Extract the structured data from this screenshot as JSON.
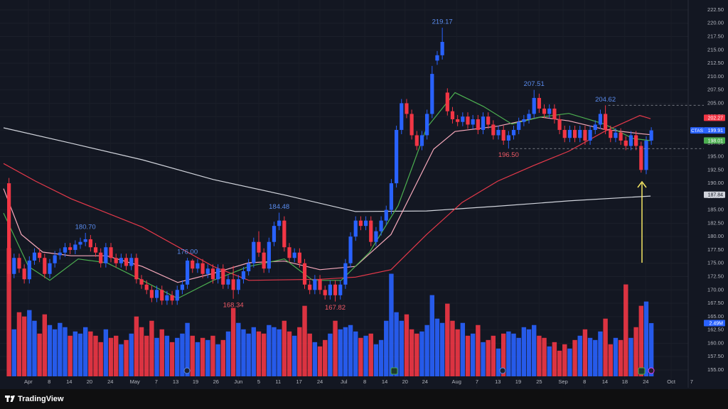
{
  "chart_data": {
    "type": "candlestick",
    "symbol": "CTAS",
    "ylim": [
      153.13,
      224.36
    ],
    "yticks": [
      {
        "value": 155,
        "label": "155.00"
      },
      {
        "value": 157.5,
        "label": "157.50"
      },
      {
        "value": 160,
        "label": "160.00"
      },
      {
        "value": 162.5,
        "label": "162.50"
      },
      {
        "value": 165,
        "label": "165.00"
      },
      {
        "value": 167.5,
        "label": "167.50"
      },
      {
        "value": 170,
        "label": "170.00"
      },
      {
        "value": 172.5,
        "label": "172.50"
      },
      {
        "value": 175,
        "label": "175.00"
      },
      {
        "value": 177.5,
        "label": "177.50"
      },
      {
        "value": 180,
        "label": "180.00"
      },
      {
        "value": 182.5,
        "label": "182.50"
      },
      {
        "value": 185,
        "label": "185.00"
      },
      {
        "value": 187.5,
        "label": "187.50"
      },
      {
        "value": 190,
        "label": "190.00"
      },
      {
        "value": 192.5,
        "label": "192.50"
      },
      {
        "value": 195,
        "label": "195.00"
      },
      {
        "value": 197.5,
        "label": "197.50"
      },
      {
        "value": 200,
        "label": "200.00"
      },
      {
        "value": 202.5,
        "label": "202.50"
      },
      {
        "value": 205,
        "label": "205.00"
      },
      {
        "value": 207.5,
        "label": "207.50"
      },
      {
        "value": 210,
        "label": "210.00"
      },
      {
        "value": 212.5,
        "label": "212.50"
      },
      {
        "value": 215,
        "label": "215.00"
      },
      {
        "value": 217.5,
        "label": "217.50"
      },
      {
        "value": 220,
        "label": "220.00"
      },
      {
        "value": 222.5,
        "label": "222.50"
      }
    ],
    "xlim": [
      -1.76,
      136.3
    ],
    "xticks": [
      {
        "value": 3.8,
        "label": "Apr"
      },
      {
        "value": 7.9,
        "label": "8"
      },
      {
        "value": 11.8,
        "label": "14"
      },
      {
        "value": 15.8,
        "label": "20"
      },
      {
        "value": 19.9,
        "label": "24"
      },
      {
        "value": 24.7,
        "label": "May"
      },
      {
        "value": 28.9,
        "label": "7"
      },
      {
        "value": 32.7,
        "label": "13"
      },
      {
        "value": 36.6,
        "label": "19"
      },
      {
        "value": 40.6,
        "label": "26"
      },
      {
        "value": 45,
        "label": "Jun"
      },
      {
        "value": 49,
        "label": "5"
      },
      {
        "value": 52.8,
        "label": "11"
      },
      {
        "value": 56.9,
        "label": "17"
      },
      {
        "value": 61,
        "label": "24"
      },
      {
        "value": 65.7,
        "label": "Jul"
      },
      {
        "value": 69.8,
        "label": "8"
      },
      {
        "value": 73.7,
        "label": "14"
      },
      {
        "value": 77.7,
        "label": "20"
      },
      {
        "value": 81.6,
        "label": "24"
      },
      {
        "value": 87.8,
        "label": "Aug"
      },
      {
        "value": 91.8,
        "label": "7"
      },
      {
        "value": 95.9,
        "label": "13"
      },
      {
        "value": 99.9,
        "label": "19"
      },
      {
        "value": 104,
        "label": "25"
      },
      {
        "value": 108.7,
        "label": "Sep"
      },
      {
        "value": 112.9,
        "label": "8"
      },
      {
        "value": 116.9,
        "label": "14"
      },
      {
        "value": 120.8,
        "label": "18"
      },
      {
        "value": 124.9,
        "label": "24"
      },
      {
        "value": 129.9,
        "label": "Oct"
      },
      {
        "value": 133.9,
        "label": "7"
      }
    ],
    "colors": {
      "up": "#2962ff",
      "down": "#f23645"
    },
    "ohlc": [
      [
        190,
        191,
        171.5,
        173
      ],
      [
        173,
        176.8,
        172.2,
        176
      ],
      [
        176,
        176.8,
        173.2,
        174
      ],
      [
        174,
        174.8,
        171.2,
        172
      ],
      [
        172,
        176.3,
        171.2,
        175.5
      ],
      [
        175.5,
        177.8,
        174.7,
        177
      ],
      [
        177,
        177.8,
        175.2,
        176
      ],
      [
        176,
        176.8,
        172.2,
        173
      ],
      [
        173,
        175.8,
        172.2,
        175
      ],
      [
        175,
        177.3,
        174.2,
        176.5
      ],
      [
        176.5,
        177.8,
        175.7,
        177
      ],
      [
        177,
        178.8,
        176.2,
        178
      ],
      [
        178,
        178.8,
        176.7,
        177.5
      ],
      [
        177.5,
        179.3,
        176.7,
        178.5
      ],
      [
        178.5,
        179.8,
        177.7,
        179
      ],
      [
        179,
        180.7,
        178.2,
        179.5
      ],
      [
        179.5,
        180.3,
        177.2,
        178
      ],
      [
        178,
        178.8,
        176.2,
        177
      ],
      [
        177,
        177.8,
        174.2,
        175
      ],
      [
        175,
        178.8,
        174.2,
        178
      ],
      [
        178,
        178.8,
        175.2,
        176
      ],
      [
        176,
        176.8,
        174.2,
        175
      ],
      [
        175,
        176.8,
        174.2,
        176
      ],
      [
        176,
        176.8,
        173.7,
        174.5
      ],
      [
        174.5,
        176.8,
        173.7,
        176
      ],
      [
        176,
        176.8,
        171.2,
        172
      ],
      [
        172,
        172.8,
        170.2,
        171
      ],
      [
        171,
        171.8,
        169.2,
        170
      ],
      [
        170,
        170.8,
        167.7,
        168.5
      ],
      [
        168.5,
        170.8,
        167.7,
        170
      ],
      [
        170,
        170.8,
        167.2,
        168
      ],
      [
        168,
        169.8,
        167.2,
        169
      ],
      [
        169,
        169.8,
        167.2,
        168
      ],
      [
        168,
        170.8,
        167.2,
        170
      ],
      [
        170,
        171.8,
        169.2,
        171
      ],
      [
        171,
        176,
        170.2,
        175.5
      ],
      [
        175.5,
        175.8,
        173.2,
        174
      ],
      [
        174,
        175.8,
        173.2,
        175
      ],
      [
        175,
        175.8,
        172.2,
        173
      ],
      [
        173,
        174.8,
        172.2,
        174
      ],
      [
        174,
        174.8,
        171.2,
        172
      ],
      [
        172,
        174.8,
        171.2,
        174
      ],
      [
        174,
        174.8,
        170.2,
        171
      ],
      [
        171,
        172.8,
        170.2,
        172
      ],
      [
        172,
        174.5,
        168.34,
        170
      ],
      [
        170,
        172.8,
        169.2,
        172
      ],
      [
        172,
        174.3,
        171.2,
        173.5
      ],
      [
        173.5,
        175.8,
        172.7,
        175
      ],
      [
        175,
        179.8,
        174.2,
        179
      ],
      [
        179,
        181,
        176.2,
        177
      ],
      [
        177,
        177.8,
        173.2,
        174
      ],
      [
        174,
        179.8,
        173.2,
        179
      ],
      [
        179,
        182.8,
        178.2,
        182
      ],
      [
        182,
        184.48,
        181.2,
        183
      ],
      [
        183,
        183.8,
        177.2,
        178
      ],
      [
        178,
        178.8,
        175.2,
        176
      ],
      [
        176,
        177.8,
        175.2,
        177
      ],
      [
        177,
        177.8,
        174.2,
        175
      ],
      [
        175,
        175.8,
        170.2,
        171
      ],
      [
        171,
        171.8,
        169.2,
        170
      ],
      [
        170,
        172.8,
        169.2,
        172
      ],
      [
        172,
        172.8,
        169.2,
        170
      ],
      [
        170,
        170.8,
        168.2,
        169
      ],
      [
        169,
        171.8,
        168.2,
        171
      ],
      [
        171,
        171.8,
        167.82,
        169
      ],
      [
        169,
        171.8,
        168.2,
        171
      ],
      [
        171,
        175.8,
        170.2,
        175
      ],
      [
        175,
        180.8,
        174.2,
        180
      ],
      [
        180,
        183.8,
        179.2,
        183
      ],
      [
        183,
        183.8,
        181.2,
        182
      ],
      [
        182,
        183.8,
        181.2,
        183
      ],
      [
        183,
        183.8,
        178.2,
        179
      ],
      [
        179,
        181.8,
        178.2,
        181
      ],
      [
        181,
        183.8,
        180.2,
        183
      ],
      [
        183,
        185.8,
        182.2,
        185
      ],
      [
        185,
        190.8,
        184.2,
        190
      ],
      [
        190,
        200.8,
        189.2,
        200
      ],
      [
        200,
        205.8,
        199.2,
        205
      ],
      [
        205,
        205.8,
        202.2,
        203
      ],
      [
        203,
        203.8,
        198.2,
        199
      ],
      [
        199,
        199.8,
        196.2,
        197
      ],
      [
        197,
        199.8,
        196.2,
        199
      ],
      [
        199,
        203.8,
        198.2,
        203
      ],
      [
        203,
        212,
        202.2,
        210.5
      ],
      [
        213,
        214.8,
        212.2,
        214
      ],
      [
        214,
        219.17,
        213.2,
        216.5
      ],
      [
        207,
        207.8,
        202.7,
        203.5
      ],
      [
        203.5,
        204.3,
        201.2,
        202
      ],
      [
        202,
        202.8,
        200.7,
        201.5
      ],
      [
        201.5,
        203.3,
        200.7,
        202.5
      ],
      [
        202.5,
        203.3,
        200.2,
        201
      ],
      [
        201,
        202.8,
        200.2,
        202
      ],
      [
        202,
        202.8,
        199.2,
        200
      ],
      [
        200,
        203.3,
        199.2,
        202.5
      ],
      [
        202.5,
        203.3,
        200.2,
        201
      ],
      [
        201,
        201.8,
        198.2,
        199
      ],
      [
        199,
        200.8,
        198.2,
        200
      ],
      [
        200,
        200.8,
        197.2,
        198
      ],
      [
        198,
        199.8,
        196.5,
        199
      ],
      [
        199,
        200.8,
        198.2,
        200
      ],
      [
        200,
        202.3,
        199.2,
        201.5
      ],
      [
        201.5,
        202.8,
        200.7,
        202
      ],
      [
        202,
        203.8,
        201.2,
        203
      ],
      [
        203,
        207.51,
        202.2,
        206
      ],
      [
        206,
        206.8,
        203.2,
        204
      ],
      [
        204,
        204.8,
        202.2,
        203
      ],
      [
        203,
        204.8,
        202.2,
        204
      ],
      [
        204,
        204.8,
        201.2,
        202
      ],
      [
        202,
        202.8,
        199.2,
        200
      ],
      [
        200,
        200.8,
        197.7,
        198.5
      ],
      [
        198.5,
        200.8,
        197.7,
        200
      ],
      [
        200,
        200.8,
        197.7,
        198.5
      ],
      [
        198.5,
        200.8,
        197.7,
        200
      ],
      [
        200,
        200.8,
        197.2,
        198
      ],
      [
        198,
        200.8,
        197.2,
        200
      ],
      [
        200,
        201.8,
        199.2,
        201
      ],
      [
        201,
        203.8,
        200.2,
        203
      ],
      [
        203,
        204.62,
        199.2,
        200
      ],
      [
        200,
        200.8,
        197.7,
        198.5
      ],
      [
        198.5,
        200.3,
        197.7,
        199.5
      ],
      [
        199.5,
        200.3,
        197.2,
        198
      ],
      [
        198,
        198.8,
        196.2,
        197
      ],
      [
        197,
        199.8,
        196.2,
        199
      ],
      [
        199,
        199.8,
        196.2,
        197
      ],
      [
        197,
        197.8,
        192,
        192.5
      ],
      [
        192.5,
        198.8,
        191.7,
        198
      ],
      [
        198,
        200.5,
        197.2,
        199.91
      ]
    ],
    "volume": [
      6.0,
      2.2,
      3.0,
      2.8,
      3.1,
      2.6,
      2.0,
      2.9,
      2.4,
      2.2,
      2.5,
      2.3,
      1.9,
      2.1,
      2.0,
      2.3,
      2.1,
      1.9,
      1.6,
      2.2,
      1.8,
      1.9,
      1.5,
      1.7,
      2.0,
      2.8,
      2.3,
      1.9,
      2.6,
      1.8,
      2.2,
      1.9,
      1.6,
      1.8,
      2.0,
      2.5,
      1.9,
      1.6,
      1.8,
      1.7,
      1.9,
      1.5,
      1.7,
      2.1,
      3.2,
      2.5,
      2.2,
      2.0,
      2.3,
      2.1,
      2.0,
      2.4,
      2.3,
      2.2,
      2.6,
      2.1,
      1.9,
      2.3,
      3.3,
      2.0,
      1.6,
      1.4,
      1.7,
      2.0,
      2.6,
      2.2,
      2.3,
      2.4,
      2.1,
      1.8,
      1.9,
      2.0,
      1.5,
      1.7,
      2.6,
      4.8,
      3.0,
      2.6,
      2.9,
      2.2,
      2.0,
      2.1,
      2.4,
      3.8,
      2.7,
      2.5,
      3.4,
      2.6,
      2.2,
      2.5,
      1.9,
      2.0,
      2.4,
      1.6,
      1.7,
      1.9,
      1.3,
      2.0,
      2.1,
      2.0,
      1.8,
      2.3,
      2.2,
      2.4,
      1.9,
      1.8,
      1.4,
      1.6,
      1.2,
      1.5,
      1.3,
      1.7,
      1.9,
      2.2,
      1.8,
      1.7,
      2.1,
      2.7,
      1.5,
      1.8,
      1.7,
      4.3,
      1.8,
      2.3,
      3.3,
      3.5,
      2.49
    ],
    "moving_averages": [
      {
        "color": "#d1d4dc",
        "x": [
          -1.06,
          12.19,
          26.13,
          40.08,
          54.02,
          67.97,
          81.92,
          95.86,
          109.81,
          125.85
        ],
        "values": [
          200.4,
          197.5,
          194.4,
          190.7,
          187.8,
          184.7,
          184.8,
          185.7,
          186.7,
          187.6
        ]
      },
      {
        "color": "#e5394a",
        "x": [
          -1.06,
          5.21,
          12.19,
          26.13,
          40.08,
          47.05,
          61.0,
          67.97,
          74.94,
          81.92,
          88.89,
          95.86,
          102.84,
          109.81,
          116.78,
          123.75,
          125.85
        ],
        "values": [
          193.7,
          190.4,
          187.1,
          181.8,
          174.4,
          171.8,
          172,
          172.4,
          173.8,
          180.4,
          186.4,
          190.4,
          193.3,
          196,
          199.7,
          202.7,
          202.1
        ]
      },
      {
        "color": "#f7a9bb",
        "x": [
          -1.06,
          2.42,
          6.61,
          12.19,
          19.16,
          26.13,
          33.1,
          40.08,
          47.05,
          54.02,
          61.0,
          67.97,
          74.94,
          79.13,
          83.31,
          87.49,
          95.86,
          104.23,
          109.81,
          116.78,
          123.75,
          125.85
        ],
        "values": [
          189,
          180.4,
          177.1,
          176.4,
          176.4,
          174.4,
          171.4,
          173.1,
          175.1,
          175.4,
          173.8,
          174.4,
          180.4,
          188.4,
          196.4,
          199.7,
          200.7,
          202.4,
          201.7,
          200.1,
          199.3,
          199.1
        ]
      },
      {
        "color": "#4caf50",
        "x": [
          -1.06,
          3.82,
          8.0,
          13.58,
          19.16,
          26.13,
          33.1,
          40.08,
          47.05,
          54.02,
          59.6,
          65.18,
          70.76,
          76.34,
          81.92,
          87.49,
          93.07,
          98.65,
          104.23,
          109.81,
          116.78,
          122.36,
          125.85
        ],
        "values": [
          184.4,
          174.4,
          171.8,
          175.8,
          175.1,
          171.8,
          168.4,
          171.8,
          174.4,
          175.8,
          171.8,
          171.8,
          177.1,
          185.8,
          200.4,
          207,
          204.4,
          201.1,
          202.4,
          203.1,
          201.1,
          198.4,
          198
        ]
      }
    ],
    "annotations": [
      {
        "label": "219.17",
        "value": 219.17,
        "x": 85,
        "side": "above",
        "color": "#5b8def"
      },
      {
        "label": "207.51",
        "value": 207.51,
        "x": 103,
        "side": "above",
        "color": "#5b8def"
      },
      {
        "label": "204.62",
        "value": 204.62,
        "x": 117,
        "side": "above",
        "color": "#5b8def",
        "line": "dashed"
      },
      {
        "label": "180.70",
        "value": 180.7,
        "x": 15,
        "side": "above",
        "color": "#5b8def"
      },
      {
        "label": "176.00",
        "value": 176,
        "x": 35,
        "side": "above",
        "color": "#5b8def"
      },
      {
        "label": "184.48",
        "value": 184.48,
        "x": 53,
        "side": "above",
        "color": "#5b8def"
      },
      {
        "label": "168.34",
        "value": 168.34,
        "x": 44,
        "side": "below",
        "color": "#f05a66"
      },
      {
        "label": "167.82",
        "value": 167.82,
        "x": 64,
        "side": "below",
        "color": "#f05a66"
      },
      {
        "label": "196.50",
        "value": 196.5,
        "x": 98,
        "side": "below",
        "color": "#f05a66",
        "line": "dashed"
      }
    ],
    "price_labels": [
      {
        "value": 202.27,
        "label": "202.27",
        "color": "#f23645",
        "text_color": "#ffffff"
      },
      {
        "value": 199.91,
        "label": "199.91",
        "color": "#2962ff",
        "text_color": "#ffffff"
      },
      {
        "value": 198.01,
        "label": "198.01",
        "color": "#4caf50",
        "text_color": "#ffffff"
      },
      {
        "value": 187.84,
        "label": "187.84",
        "color": "#d1d4dc",
        "text_color": "#131722"
      }
    ],
    "volume_label": {
      "value": 2.49,
      "label": "2.49M",
      "color": "#2962ff"
    }
  },
  "footer": {
    "brand": "TradingView"
  }
}
